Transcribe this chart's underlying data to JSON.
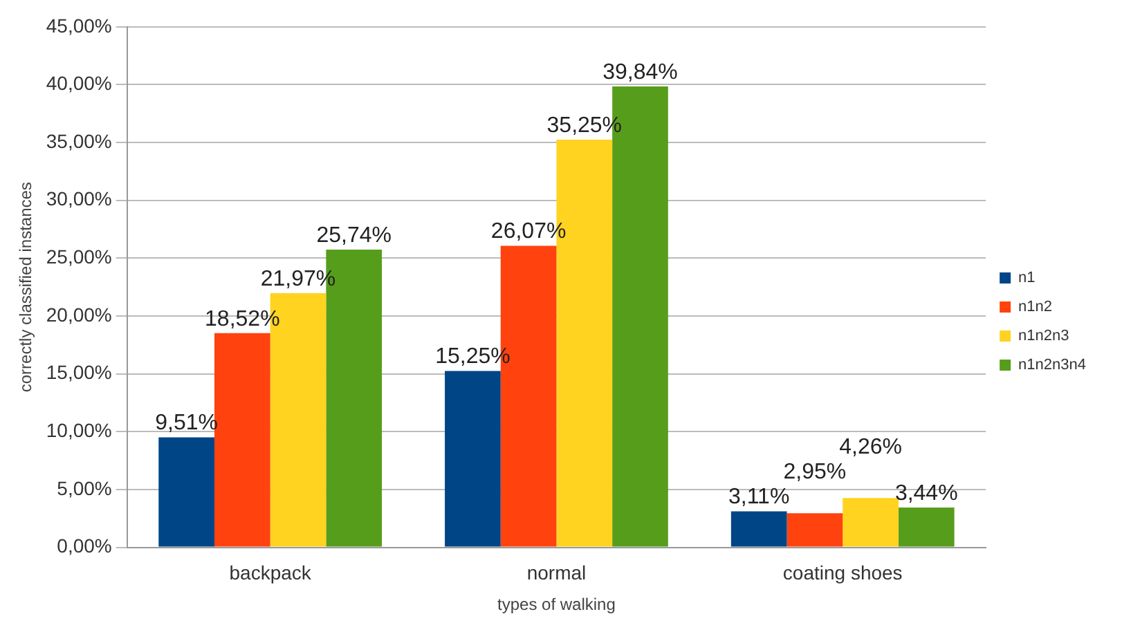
{
  "chart_data": {
    "type": "bar",
    "xlabel": "types of walking",
    "ylabel": "correctly classified instances",
    "categories": [
      "backpack",
      "normal",
      "coating shoes"
    ],
    "series": [
      {
        "name": "n1",
        "color": "#004586",
        "values": [
          9.51,
          15.25,
          3.11
        ],
        "value_labels": [
          "9,51%",
          "15,25%",
          "3,11%"
        ]
      },
      {
        "name": "n1n2",
        "color": "#ff420e",
        "values": [
          18.52,
          26.07,
          2.95
        ],
        "value_labels": [
          "18,52%",
          "26,07%",
          "2,95%"
        ]
      },
      {
        "name": "n1n2n3",
        "color": "#ffd320",
        "values": [
          21.97,
          35.25,
          4.26
        ],
        "value_labels": [
          "21,97%",
          "35,25%",
          "4,26%"
        ]
      },
      {
        "name": "n1n2n3n4",
        "color": "#579d1c",
        "values": [
          25.74,
          39.84,
          3.44
        ],
        "value_labels": [
          "25,74%",
          "39,84%",
          "3,44%"
        ]
      }
    ],
    "ylim": [
      0,
      45
    ],
    "yticks": [
      {
        "value": 0,
        "label": "0,00%"
      },
      {
        "value": 5,
        "label": "5,00%"
      },
      {
        "value": 10,
        "label": "10,00%"
      },
      {
        "value": 15,
        "label": "15,00%"
      },
      {
        "value": 20,
        "label": "20,00%"
      },
      {
        "value": 25,
        "label": "25,00%"
      },
      {
        "value": 30,
        "label": "30,00%"
      },
      {
        "value": 35,
        "label": "35,00%"
      },
      {
        "value": 40,
        "label": "40,00%"
      },
      {
        "value": 45,
        "label": "45,00%"
      }
    ],
    "grid": "y",
    "legend": "right"
  }
}
